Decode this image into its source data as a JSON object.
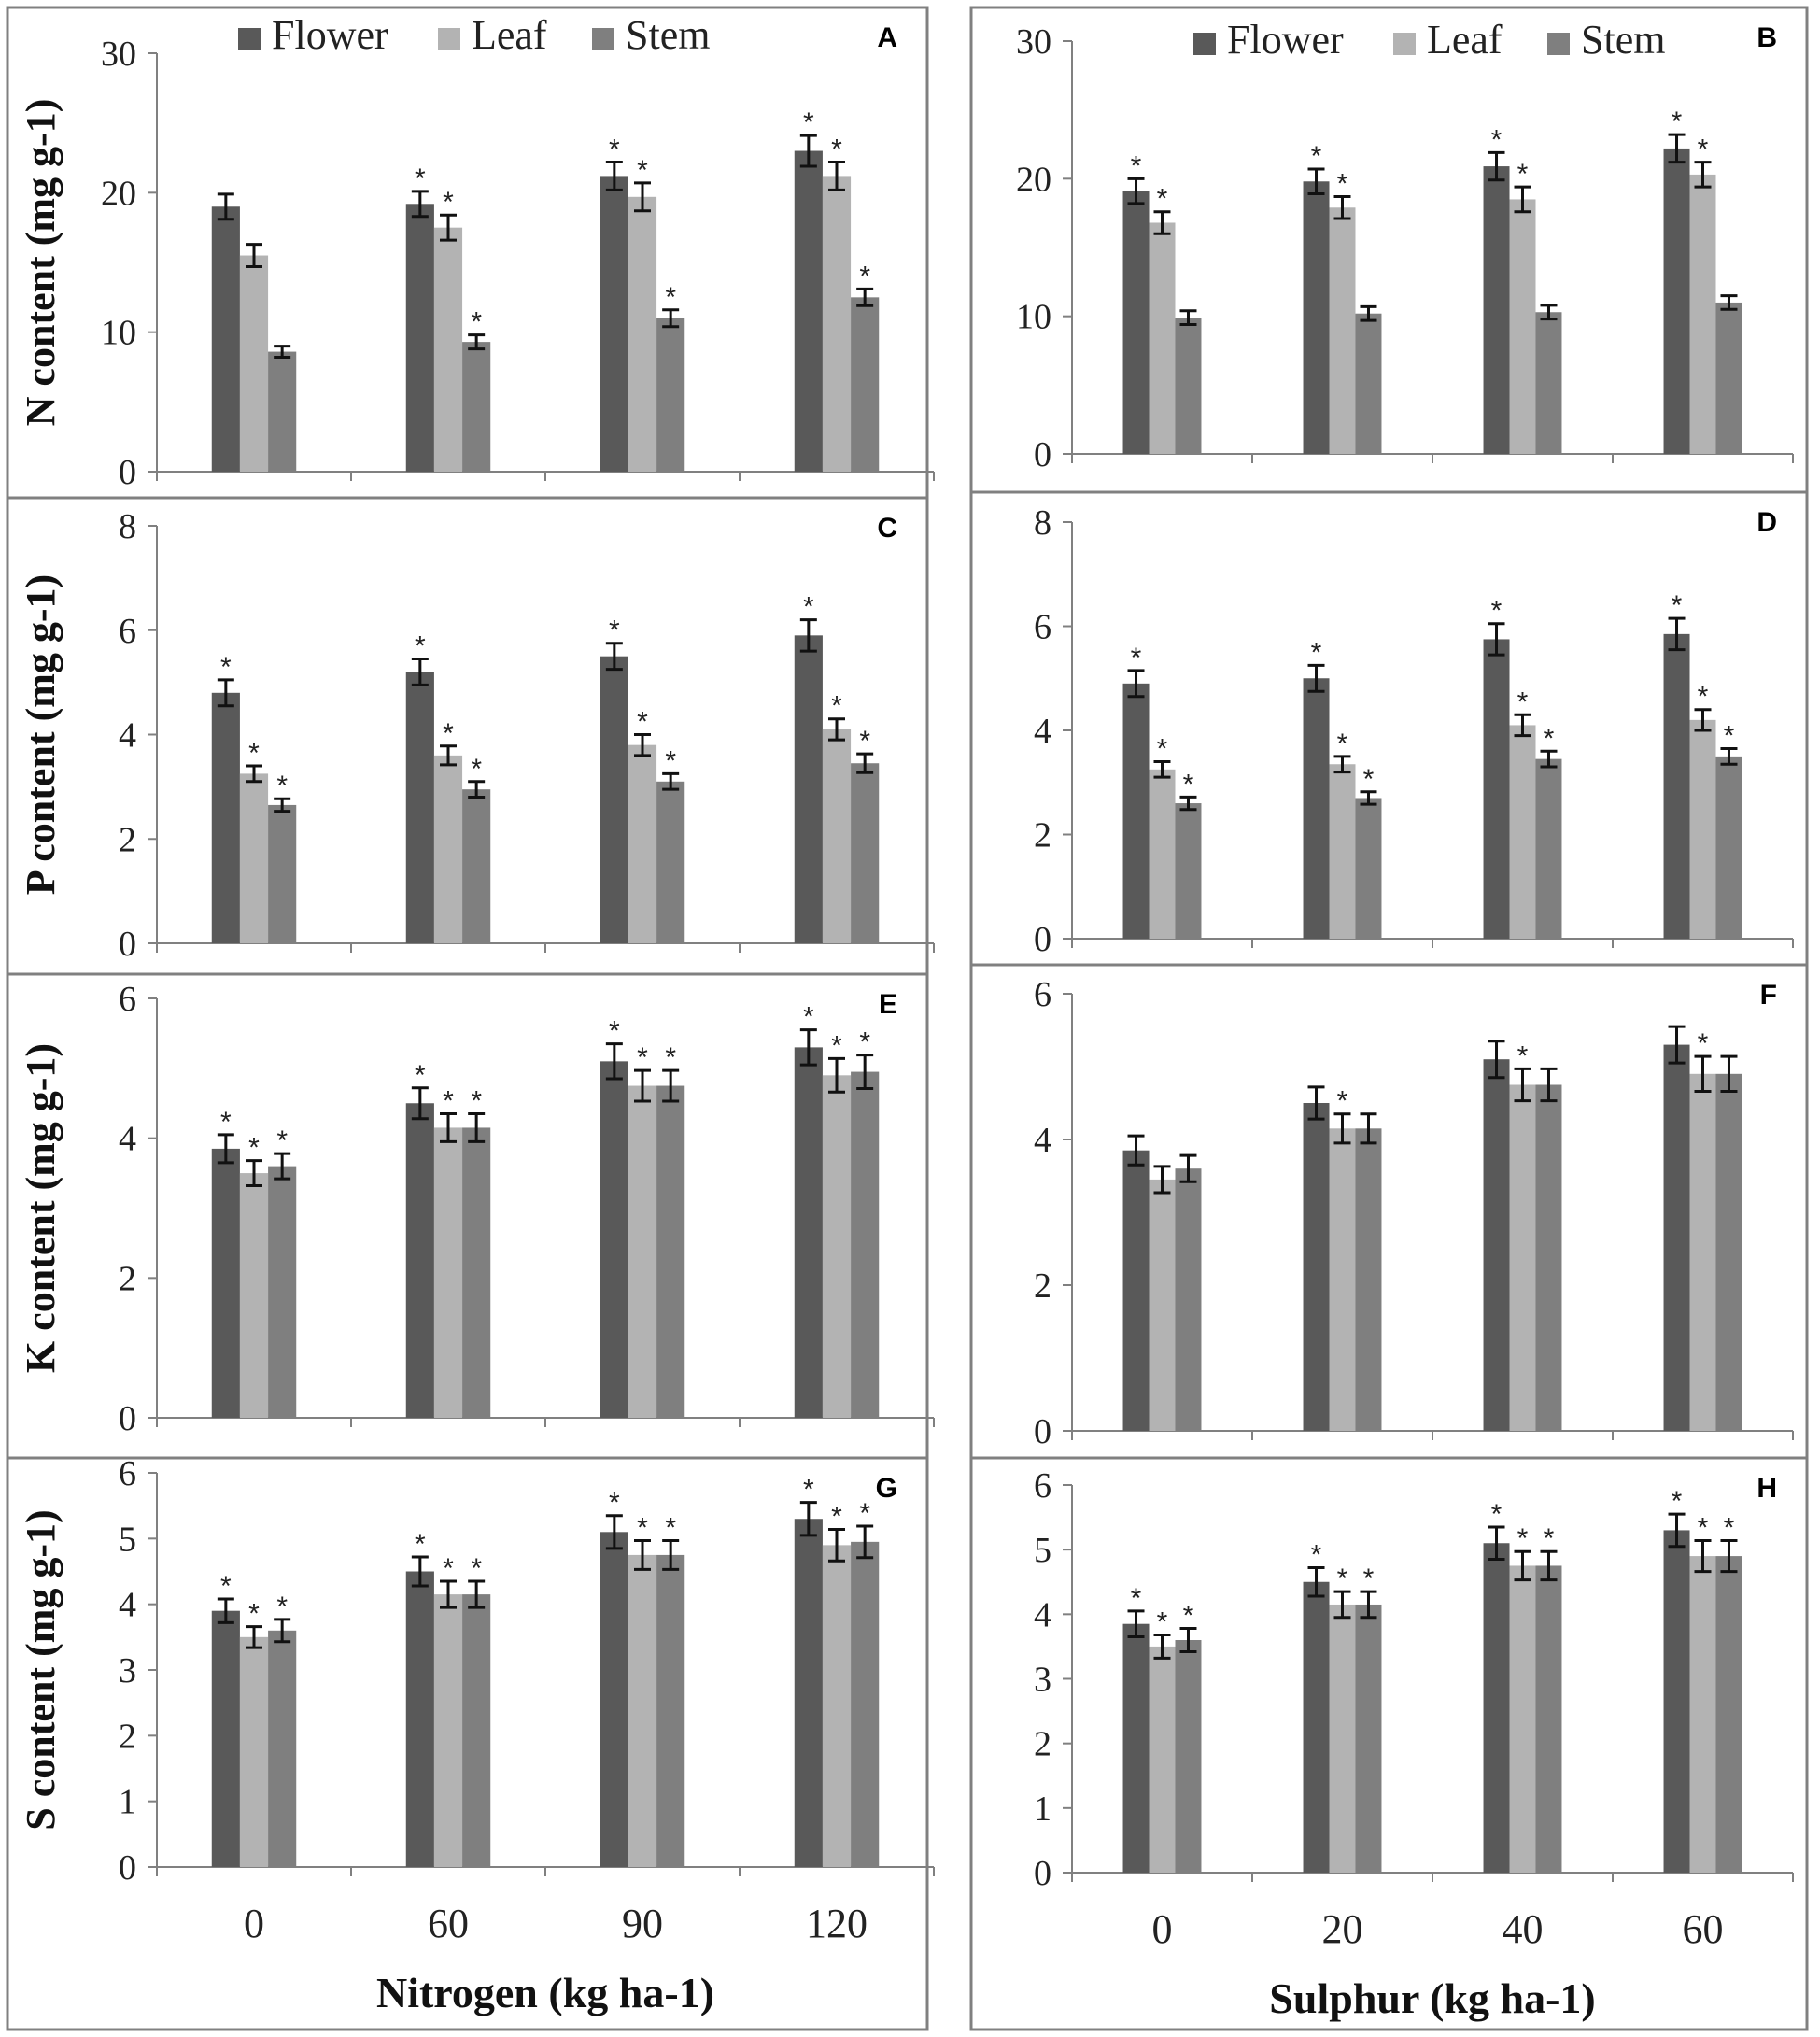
{
  "chart_data": [
    {
      "panel": "A",
      "type": "bar",
      "ylabel": "N content (mg g-1)",
      "ylim": [
        0,
        30
      ],
      "yticks": [
        0,
        10,
        20,
        30
      ],
      "categories": [
        "0",
        "60",
        "90",
        "120"
      ],
      "series": [
        {
          "name": "Flower",
          "values": [
            19.0,
            19.2,
            21.2,
            23.0
          ],
          "errors": [
            0.9,
            0.9,
            1.0,
            1.1
          ],
          "significant": [
            false,
            true,
            true,
            true
          ]
        },
        {
          "name": "Leaf",
          "values": [
            15.5,
            17.5,
            19.7,
            21.2
          ],
          "errors": [
            0.8,
            0.9,
            1.0,
            1.0
          ],
          "significant": [
            false,
            true,
            true,
            true
          ]
        },
        {
          "name": "Stem",
          "values": [
            8.6,
            9.3,
            11.0,
            12.5
          ],
          "errors": [
            0.4,
            0.5,
            0.6,
            0.6
          ],
          "significant": [
            false,
            true,
            true,
            true
          ]
        }
      ]
    },
    {
      "panel": "B",
      "type": "bar",
      "ylabel": "",
      "ylim": [
        0,
        30
      ],
      "yticks": [
        0,
        10,
        20,
        30
      ],
      "categories": [
        "0",
        "20",
        "40",
        "60"
      ],
      "series": [
        {
          "name": "Flower",
          "values": [
            19.1,
            19.8,
            20.9,
            22.2
          ],
          "errors": [
            0.9,
            0.9,
            1.0,
            1.0
          ],
          "significant": [
            true,
            true,
            true,
            true
          ]
        },
        {
          "name": "Leaf",
          "values": [
            16.8,
            17.9,
            18.5,
            20.3
          ],
          "errors": [
            0.8,
            0.8,
            0.9,
            0.9
          ],
          "significant": [
            true,
            true,
            true,
            true
          ]
        },
        {
          "name": "Stem",
          "values": [
            9.9,
            10.2,
            10.3,
            11.0
          ],
          "errors": [
            0.5,
            0.5,
            0.5,
            0.5
          ],
          "significant": [
            false,
            false,
            false,
            false
          ]
        }
      ]
    },
    {
      "panel": "C",
      "type": "bar",
      "ylabel": "P content (mg g-1)",
      "ylim": [
        0,
        8
      ],
      "yticks": [
        0,
        2,
        4,
        6,
        8
      ],
      "categories": [
        "0",
        "60",
        "90",
        "120"
      ],
      "series": [
        {
          "name": "Flower",
          "values": [
            4.8,
            5.2,
            5.5,
            5.9
          ],
          "errors": [
            0.25,
            0.25,
            0.25,
            0.3
          ],
          "significant": [
            true,
            true,
            true,
            true
          ]
        },
        {
          "name": "Leaf",
          "values": [
            3.25,
            3.6,
            3.8,
            4.1
          ],
          "errors": [
            0.15,
            0.18,
            0.2,
            0.2
          ],
          "significant": [
            true,
            true,
            true,
            true
          ]
        },
        {
          "name": "Stem",
          "values": [
            2.65,
            2.95,
            3.1,
            3.45
          ],
          "errors": [
            0.12,
            0.15,
            0.15,
            0.18
          ],
          "significant": [
            true,
            true,
            true,
            true
          ]
        }
      ]
    },
    {
      "panel": "D",
      "type": "bar",
      "ylabel": "",
      "ylim": [
        0,
        8
      ],
      "yticks": [
        0,
        2,
        4,
        6,
        8
      ],
      "categories": [
        "0",
        "20",
        "40",
        "60"
      ],
      "series": [
        {
          "name": "Flower",
          "values": [
            4.9,
            5.0,
            5.75,
            5.85
          ],
          "errors": [
            0.25,
            0.25,
            0.3,
            0.3
          ],
          "significant": [
            true,
            true,
            true,
            true
          ]
        },
        {
          "name": "Leaf",
          "values": [
            3.25,
            3.35,
            4.1,
            4.2
          ],
          "errors": [
            0.15,
            0.15,
            0.2,
            0.2
          ],
          "significant": [
            true,
            true,
            true,
            true
          ]
        },
        {
          "name": "Stem",
          "values": [
            2.6,
            2.7,
            3.45,
            3.5
          ],
          "errors": [
            0.12,
            0.12,
            0.15,
            0.15
          ],
          "significant": [
            true,
            true,
            true,
            true
          ]
        }
      ]
    },
    {
      "panel": "E",
      "type": "bar",
      "ylabel": "K content (mg g-1)",
      "ylim": [
        0,
        6
      ],
      "yticks": [
        0,
        2,
        4,
        6
      ],
      "categories": [
        "0",
        "60",
        "90",
        "120"
      ],
      "series": [
        {
          "name": "Flower",
          "values": [
            3.85,
            4.5,
            5.1,
            5.3
          ],
          "errors": [
            0.2,
            0.22,
            0.25,
            0.25
          ],
          "significant": [
            true,
            true,
            true,
            true
          ]
        },
        {
          "name": "Leaf",
          "values": [
            3.5,
            4.15,
            4.75,
            4.9
          ],
          "errors": [
            0.18,
            0.2,
            0.22,
            0.24
          ],
          "significant": [
            true,
            true,
            true,
            true
          ]
        },
        {
          "name": "Stem",
          "values": [
            3.6,
            4.15,
            4.75,
            4.95
          ],
          "errors": [
            0.18,
            0.2,
            0.22,
            0.24
          ],
          "significant": [
            true,
            true,
            true,
            true
          ]
        }
      ]
    },
    {
      "panel": "F",
      "type": "bar",
      "ylabel": "",
      "ylim": [
        0,
        6
      ],
      "yticks": [
        0,
        2,
        4,
        6
      ],
      "categories": [
        "0",
        "20",
        "40",
        "60"
      ],
      "series": [
        {
          "name": "Flower",
          "values": [
            3.85,
            4.5,
            5.1,
            5.3
          ],
          "errors": [
            0.2,
            0.22,
            0.25,
            0.25
          ],
          "significant": [
            false,
            false,
            false,
            false
          ]
        },
        {
          "name": "Leaf",
          "values": [
            3.45,
            4.15,
            4.75,
            4.9
          ],
          "errors": [
            0.18,
            0.2,
            0.22,
            0.24
          ],
          "significant": [
            false,
            true,
            true,
            true
          ]
        },
        {
          "name": "Stem",
          "values": [
            3.6,
            4.15,
            4.75,
            4.9
          ],
          "errors": [
            0.18,
            0.2,
            0.22,
            0.24
          ],
          "significant": [
            false,
            false,
            false,
            false
          ]
        }
      ]
    },
    {
      "panel": "G",
      "type": "bar",
      "ylabel": "S content (mg g-1)",
      "ylim": [
        0,
        6
      ],
      "yticks": [
        0,
        1,
        2,
        3,
        4,
        5,
        6
      ],
      "categories": [
        "0",
        "60",
        "90",
        "120"
      ],
      "xlabel": "Nitrogen (kg ha-1)",
      "series": [
        {
          "name": "Flower",
          "values": [
            3.9,
            4.5,
            5.1,
            5.3
          ],
          "errors": [
            0.18,
            0.22,
            0.25,
            0.25
          ],
          "significant": [
            true,
            true,
            true,
            true
          ]
        },
        {
          "name": "Leaf",
          "values": [
            3.5,
            4.15,
            4.75,
            4.9
          ],
          "errors": [
            0.16,
            0.2,
            0.22,
            0.24
          ],
          "significant": [
            true,
            true,
            true,
            true
          ]
        },
        {
          "name": "Stem",
          "values": [
            3.6,
            4.15,
            4.75,
            4.95
          ],
          "errors": [
            0.17,
            0.2,
            0.22,
            0.24
          ],
          "significant": [
            true,
            true,
            true,
            true
          ]
        }
      ]
    },
    {
      "panel": "H",
      "type": "bar",
      "ylabel": "",
      "ylim": [
        0,
        6
      ],
      "yticks": [
        0,
        1,
        2,
        3,
        4,
        5,
        6
      ],
      "categories": [
        "0",
        "20",
        "40",
        "60"
      ],
      "xlabel": "Sulphur (kg ha-1)",
      "series": [
        {
          "name": "Flower",
          "values": [
            3.85,
            4.5,
            5.1,
            5.3
          ],
          "errors": [
            0.2,
            0.22,
            0.25,
            0.25
          ],
          "significant": [
            true,
            true,
            true,
            true
          ]
        },
        {
          "name": "Leaf",
          "values": [
            3.5,
            4.15,
            4.75,
            4.9
          ],
          "errors": [
            0.18,
            0.2,
            0.22,
            0.24
          ],
          "significant": [
            true,
            true,
            true,
            true
          ]
        },
        {
          "name": "Stem",
          "values": [
            3.6,
            4.15,
            4.75,
            4.9
          ],
          "errors": [
            0.18,
            0.2,
            0.22,
            0.24
          ],
          "significant": [
            true,
            true,
            true,
            true
          ]
        }
      ]
    }
  ],
  "legend": [
    "Flower",
    "Leaf",
    "Stem"
  ],
  "significance_mark": "*",
  "colors": {
    "Flower": "#595959",
    "Leaf": "#b3b3b3",
    "Stem": "#7f7f7f"
  }
}
